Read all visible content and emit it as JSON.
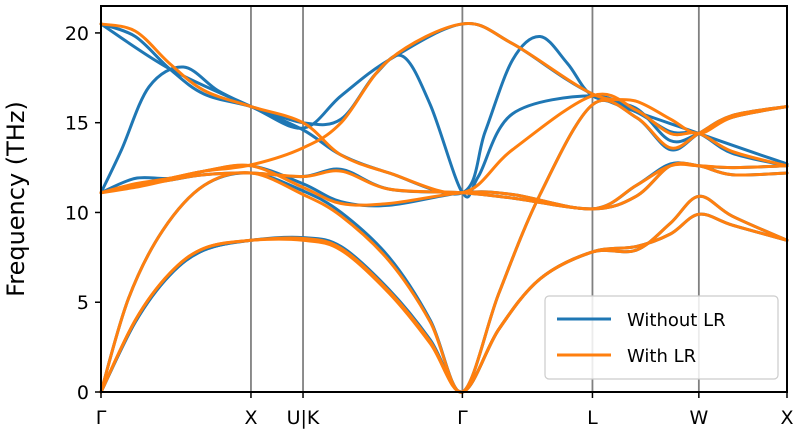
{
  "chart_data": {
    "type": "line",
    "title": "",
    "xlabel": "",
    "ylabel": "Frequency (THz)",
    "ylim": [
      0,
      21.5
    ],
    "xlim": [
      0,
      1
    ],
    "yticks": [
      0,
      5,
      10,
      15,
      20
    ],
    "grid": false,
    "legend_position": "lower-right",
    "high_symmetry_points": [
      {
        "label": "Γ",
        "x": 0.0
      },
      {
        "label": "X",
        "x": 0.2186
      },
      {
        "label": "U|K",
        "x": 0.2945
      },
      {
        "label": "Γ",
        "x": 0.5268
      },
      {
        "label": "L",
        "x": 0.7164
      },
      {
        "label": "W",
        "x": 0.8715
      },
      {
        "label": "X",
        "x": 1.0
      }
    ],
    "series": [
      {
        "name": "Without LR",
        "color": "#1f77b4",
        "bands": [
          [
            [
              0,
              0
            ],
            [
              0.05,
              3.9
            ],
            [
              0.1,
              6.5
            ],
            [
              0.15,
              7.9
            ],
            [
              0.2186,
              8.45
            ],
            [
              0.2945,
              8.6
            ],
            [
              0.35,
              8.1
            ],
            [
              0.42,
              5.7
            ],
            [
              0.48,
              2.9
            ],
            [
              0.5268,
              0
            ],
            [
              0.58,
              3.5
            ],
            [
              0.64,
              6.3
            ],
            [
              0.7164,
              7.8
            ],
            [
              0.78,
              8.1
            ],
            [
              0.83,
              8.8
            ],
            [
              0.8715,
              9.9
            ],
            [
              0.92,
              9.3
            ],
            [
              1.0,
              8.45
            ]
          ],
          [
            [
              0,
              0
            ],
            [
              0.05,
              3.9
            ],
            [
              0.1,
              6.5
            ],
            [
              0.15,
              7.9
            ],
            [
              0.2186,
              8.45
            ],
            [
              0.2945,
              8.5
            ],
            [
              0.35,
              8.0
            ],
            [
              0.42,
              5.6
            ],
            [
              0.48,
              2.8
            ],
            [
              0.5268,
              0
            ],
            [
              0.58,
              3.5
            ],
            [
              0.64,
              6.3
            ],
            [
              0.7164,
              7.8
            ],
            [
              0.78,
              7.9
            ],
            [
              0.83,
              9.4
            ],
            [
              0.8715,
              10.9
            ],
            [
              0.92,
              9.8
            ],
            [
              1.0,
              8.45
            ]
          ],
          [
            [
              0,
              0
            ],
            [
              0.04,
              5.2
            ],
            [
              0.09,
              9.0
            ],
            [
              0.15,
              11.5
            ],
            [
              0.2186,
              12.2
            ],
            [
              0.2945,
              11.2
            ],
            [
              0.35,
              10.0
            ],
            [
              0.42,
              7.5
            ],
            [
              0.48,
              4.0
            ],
            [
              0.5268,
              0
            ],
            [
              0.58,
              5.5
            ],
            [
              0.64,
              11.0
            ],
            [
              0.7164,
              16.0
            ],
            [
              0.78,
              15.3
            ],
            [
              0.83,
              13.5
            ],
            [
              0.8715,
              14.4
            ],
            [
              0.92,
              15.4
            ],
            [
              1.0,
              15.9
            ]
          ],
          [
            [
              0,
              11.1
            ],
            [
              0.05,
              11.9
            ],
            [
              0.1,
              11.9
            ],
            [
              0.15,
              12.3
            ],
            [
              0.2186,
              12.6
            ],
            [
              0.2945,
              11.6
            ],
            [
              0.35,
              10.6
            ],
            [
              0.42,
              10.4
            ],
            [
              0.5268,
              11.1
            ],
            [
              0.6,
              11.0
            ],
            [
              0.7164,
              10.2
            ],
            [
              0.78,
              11.5
            ],
            [
              0.83,
              12.7
            ],
            [
              0.8715,
              12.6
            ],
            [
              0.92,
              12.5
            ],
            [
              1.0,
              12.6
            ]
          ],
          [
            [
              0,
              11.1
            ],
            [
              0.05,
              11.5
            ],
            [
              0.1,
              11.8
            ],
            [
              0.15,
              12.1
            ],
            [
              0.2186,
              12.2
            ],
            [
              0.2945,
              12.0
            ],
            [
              0.35,
              12.4
            ],
            [
              0.42,
              11.3
            ],
            [
              0.5268,
              11.1
            ],
            [
              0.6,
              10.8
            ],
            [
              0.7164,
              10.2
            ],
            [
              0.78,
              10.9
            ],
            [
              0.83,
              12.6
            ],
            [
              0.8715,
              12.6
            ],
            [
              0.92,
              12.1
            ],
            [
              1.0,
              12.2
            ]
          ],
          [
            [
              0,
              11.1
            ],
            [
              0.03,
              13.5
            ],
            [
              0.07,
              17.0
            ],
            [
              0.12,
              18.1
            ],
            [
              0.17,
              16.8
            ],
            [
              0.2186,
              15.9
            ],
            [
              0.2945,
              14.6
            ],
            [
              0.35,
              13.2
            ],
            [
              0.42,
              12.2
            ],
            [
              0.5268,
              11.1
            ],
            [
              0.56,
              14.5
            ],
            [
              0.6,
              18.5
            ],
            [
              0.64,
              19.8
            ],
            [
              0.68,
              18.3
            ],
            [
              0.7164,
              16.5
            ],
            [
              0.78,
              15.8
            ],
            [
              0.83,
              14.0
            ],
            [
              0.8715,
              14.4
            ],
            [
              0.92,
              15.3
            ],
            [
              1.0,
              15.9
            ]
          ],
          [
            [
              0,
              20.5
            ],
            [
              0.05,
              19.8
            ],
            [
              0.1,
              18.0
            ],
            [
              0.15,
              16.6
            ],
            [
              0.2186,
              15.9
            ],
            [
              0.2945,
              15.0
            ],
            [
              0.35,
              15.2
            ],
            [
              0.4,
              17.7
            ],
            [
              0.44,
              18.7
            ],
            [
              0.48,
              16.0
            ],
            [
              0.5268,
              11.1
            ],
            [
              0.55,
              12.0
            ],
            [
              0.6,
              15.5
            ],
            [
              0.7164,
              16.5
            ],
            [
              0.78,
              15.6
            ],
            [
              0.83,
              14.5
            ],
            [
              0.8715,
              14.4
            ],
            [
              0.92,
              13.3
            ],
            [
              1.0,
              12.6
            ]
          ],
          [
            [
              0,
              20.5
            ],
            [
              0.1,
              18.0
            ],
            [
              0.2186,
              15.9
            ],
            [
              0.2945,
              14.7
            ],
            [
              0.35,
              16.5
            ],
            [
              0.42,
              18.5
            ],
            [
              0.5268,
              20.5
            ],
            [
              0.6,
              19.4
            ],
            [
              0.7164,
              16.6
            ],
            [
              0.8715,
              14.4
            ],
            [
              1.0,
              12.7
            ]
          ]
        ]
      },
      {
        "name": "With LR",
        "color": "#ff7f0e",
        "bands": [
          [
            [
              0,
              0
            ],
            [
              0.05,
              4.0
            ],
            [
              0.1,
              6.6
            ],
            [
              0.15,
              8.0
            ],
            [
              0.2186,
              8.45
            ],
            [
              0.2945,
              8.55
            ],
            [
              0.35,
              8.0
            ],
            [
              0.42,
              5.6
            ],
            [
              0.48,
              2.8
            ],
            [
              0.5268,
              0
            ],
            [
              0.58,
              3.5
            ],
            [
              0.64,
              6.3
            ],
            [
              0.7164,
              7.8
            ],
            [
              0.78,
              8.1
            ],
            [
              0.83,
              8.8
            ],
            [
              0.8715,
              9.9
            ],
            [
              0.92,
              9.3
            ],
            [
              1.0,
              8.45
            ]
          ],
          [
            [
              0,
              0
            ],
            [
              0.05,
              4.0
            ],
            [
              0.1,
              6.6
            ],
            [
              0.15,
              8.0
            ],
            [
              0.2186,
              8.45
            ],
            [
              0.2945,
              8.45
            ],
            [
              0.35,
              7.9
            ],
            [
              0.42,
              5.5
            ],
            [
              0.48,
              2.7
            ],
            [
              0.5268,
              0
            ],
            [
              0.58,
              3.5
            ],
            [
              0.64,
              6.3
            ],
            [
              0.7164,
              7.8
            ],
            [
              0.78,
              7.9
            ],
            [
              0.83,
              9.4
            ],
            [
              0.8715,
              10.9
            ],
            [
              0.92,
              9.8
            ],
            [
              1.0,
              8.45
            ]
          ],
          [
            [
              0,
              0
            ],
            [
              0.04,
              5.2
            ],
            [
              0.09,
              9.0
            ],
            [
              0.15,
              11.5
            ],
            [
              0.2186,
              12.2
            ],
            [
              0.2945,
              11.0
            ],
            [
              0.35,
              9.8
            ],
            [
              0.42,
              7.3
            ],
            [
              0.48,
              3.9
            ],
            [
              0.5268,
              0
            ],
            [
              0.58,
              5.5
            ],
            [
              0.64,
              11.0
            ],
            [
              0.7164,
              16.0
            ],
            [
              0.78,
              15.3
            ],
            [
              0.83,
              13.6
            ],
            [
              0.8715,
              14.4
            ],
            [
              0.92,
              15.4
            ],
            [
              1.0,
              15.9
            ]
          ],
          [
            [
              0,
              11.1
            ],
            [
              0.05,
              11.6
            ],
            [
              0.1,
              11.9
            ],
            [
              0.15,
              12.3
            ],
            [
              0.2186,
              12.6
            ],
            [
              0.2945,
              11.4
            ],
            [
              0.35,
              10.5
            ],
            [
              0.42,
              10.5
            ],
            [
              0.5268,
              11.1
            ],
            [
              0.6,
              11.0
            ],
            [
              0.7164,
              10.2
            ],
            [
              0.78,
              11.5
            ],
            [
              0.83,
              12.6
            ],
            [
              0.8715,
              12.6
            ],
            [
              0.92,
              12.5
            ],
            [
              1.0,
              12.6
            ]
          ],
          [
            [
              0,
              11.1
            ],
            [
              0.05,
              11.4
            ],
            [
              0.1,
              11.8
            ],
            [
              0.15,
              12.1
            ],
            [
              0.2186,
              12.2
            ],
            [
              0.2945,
              12.0
            ],
            [
              0.35,
              12.3
            ],
            [
              0.42,
              11.3
            ],
            [
              0.5268,
              11.1
            ],
            [
              0.6,
              10.8
            ],
            [
              0.7164,
              10.2
            ],
            [
              0.78,
              10.9
            ],
            [
              0.83,
              12.6
            ],
            [
              0.8715,
              12.6
            ],
            [
              0.92,
              12.1
            ],
            [
              1.0,
              12.2
            ]
          ],
          [
            [
              0,
              11.1
            ],
            [
              0.05,
              11.5
            ],
            [
              0.1,
              11.9
            ],
            [
              0.15,
              12.3
            ],
            [
              0.2186,
              12.65
            ],
            [
              0.2945,
              13.6
            ],
            [
              0.35,
              15.0
            ],
            [
              0.42,
              18.5
            ],
            [
              0.5268,
              20.5
            ],
            [
              0.6,
              19.4
            ],
            [
              0.7164,
              16.6
            ],
            [
              0.78,
              16.2
            ],
            [
              0.83,
              15.2
            ],
            [
              0.8715,
              14.4
            ],
            [
              0.92,
              15.3
            ],
            [
              1.0,
              15.9
            ]
          ],
          [
            [
              0,
              20.5
            ],
            [
              0.05,
              20.1
            ],
            [
              0.1,
              18.3
            ],
            [
              0.15,
              16.8
            ],
            [
              0.2186,
              15.9
            ],
            [
              0.2945,
              15.0
            ],
            [
              0.35,
              13.2
            ],
            [
              0.42,
              12.2
            ],
            [
              0.5268,
              11.1
            ],
            [
              0.6,
              13.5
            ],
            [
              0.7164,
              16.5
            ],
            [
              0.78,
              15.7
            ],
            [
              0.83,
              14.4
            ],
            [
              0.8715,
              14.4
            ],
            [
              0.92,
              13.4
            ],
            [
              1.0,
              12.6
            ]
          ]
        ]
      }
    ]
  }
}
